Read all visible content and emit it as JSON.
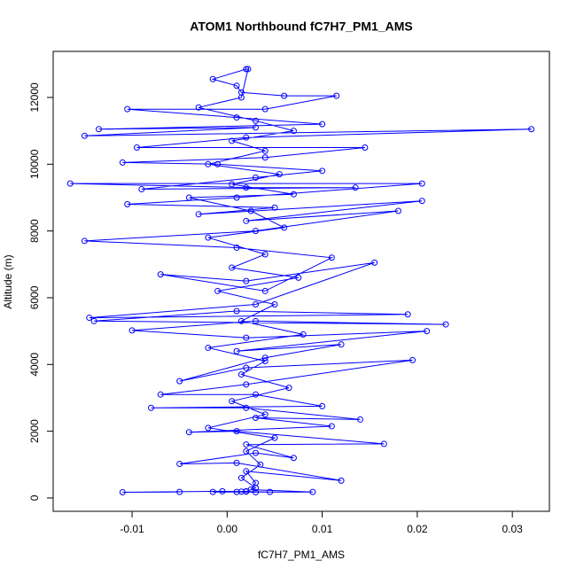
{
  "chart_data": {
    "type": "line",
    "title": "ATOM1 Northbound fC7H7_PM1_AMS",
    "xlabel": "fC7H7_PM1_AMS",
    "ylabel": "Altitude (m)",
    "color": "#0000ff",
    "markers": true,
    "x": [
      0.001,
      0.002,
      0.003,
      0.0015,
      -0.0015,
      0.009,
      0.0025,
      0.003,
      0.002,
      0.012,
      0.001,
      -0.005,
      0.003,
      0.007,
      0.002,
      0.0165,
      0.001,
      -0.004,
      0.011,
      0.003,
      0.014,
      0.002,
      -0.008,
      0.01,
      0.003,
      -0.007,
      0.002,
      0.0195,
      0.002,
      -0.005,
      0.004,
      0.012,
      0.001,
      0.021,
      0.002,
      -0.01,
      0.003,
      0.023,
      -0.014,
      0.001,
      0.019,
      -0.0145,
      0.003,
      0.0155,
      0.002,
      -0.007,
      0.004,
      0.011,
      0.001,
      -0.015,
      0.003,
      0.018,
      0.002,
      0.0205,
      -0.003,
      0.005,
      -0.0105,
      0.001,
      0.0205,
      -0.0165,
      0.002,
      0.0135,
      -0.009,
      0.003,
      0.01,
      -0.001,
      -0.011,
      0.004,
      0.0145,
      -0.0095,
      0.002,
      0.032,
      -0.015,
      0.003,
      -0.0135,
      0.01,
      0.001,
      -0.0105,
      0.004,
      0.0115,
      0.006,
      0.0015,
      0.001,
      -0.0015,
      0.002,
      0.0022,
      0.0015,
      -0.003,
      0.003,
      0.007,
      0.0005,
      0.004,
      -0.002,
      0.0055,
      0.0005,
      0.007,
      -0.004,
      0.0025,
      0.006,
      -0.002,
      0.004,
      0.0005,
      0.0075,
      -0.001,
      0.005,
      0.0015,
      0.008,
      -0.002,
      0.004,
      0.0015,
      0.0065,
      0.0005,
      0.004,
      -0.002,
      0.005,
      0.002,
      0.0035,
      0.0015,
      0.003,
      0.002,
      0.0045,
      -0.0005,
      -0.011,
      -0.005
    ],
    "values": [
      180,
      200,
      170,
      190,
      180,
      180,
      250,
      450,
      800,
      520,
      1050,
      1020,
      1350,
      1200,
      1600,
      1620,
      2000,
      1970,
      2150,
      2400,
      2350,
      2700,
      2700,
      2750,
      3100,
      3100,
      3400,
      4130,
      3900,
      3500,
      4200,
      4600,
      4400,
      5000,
      4800,
      5020,
      5300,
      5200,
      5300,
      5600,
      5500,
      5400,
      5800,
      7050,
      6500,
      6700,
      6200,
      7200,
      7500,
      7700,
      8000,
      8600,
      8300,
      8900,
      8500,
      8700,
      8800,
      9000,
      9420,
      9420,
      9300,
      9300,
      9250,
      9600,
      9800,
      10000,
      10050,
      10200,
      10500,
      10500,
      10800,
      11050,
      10850,
      11100,
      11050,
      11200,
      11400,
      11650,
      11650,
      12050,
      12050,
      12150,
      12350,
      12550,
      12850,
      12850,
      12000,
      11700,
      11300,
      11000,
      10700,
      10400,
      10000,
      9700,
      9400,
      9100,
      9000,
      8600,
      8100,
      7800,
      7300,
      6900,
      6600,
      6200,
      5800,
      5300,
      4900,
      4500,
      4100,
      3700,
      3300,
      2900,
      2500,
      2100,
      1800,
      1400,
      1000,
      600,
      300,
      190,
      180,
      200,
      170,
      180
    ],
    "xlim": [
      -0.0183,
      0.0339
    ],
    "xticks": [
      -0.01,
      {
        "value": 0,
        "label": "0.00"
      },
      0.01,
      0.02,
      0.03
    ],
    "ylim": [
      -400,
      13380
    ],
    "yticks": [
      0,
      2000,
      4000,
      6000,
      8000,
      10000,
      12000
    ]
  }
}
